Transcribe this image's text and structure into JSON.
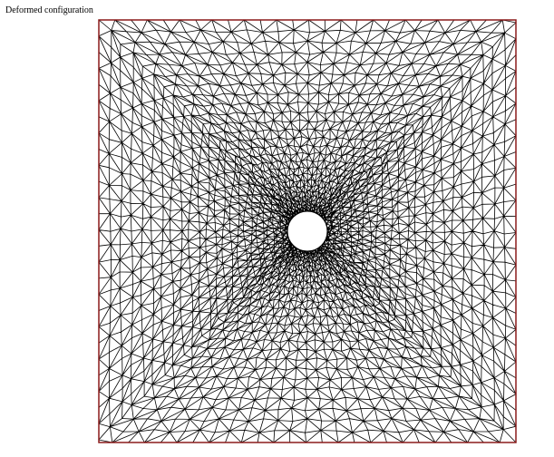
{
  "title": "Deformed configuration"
}
